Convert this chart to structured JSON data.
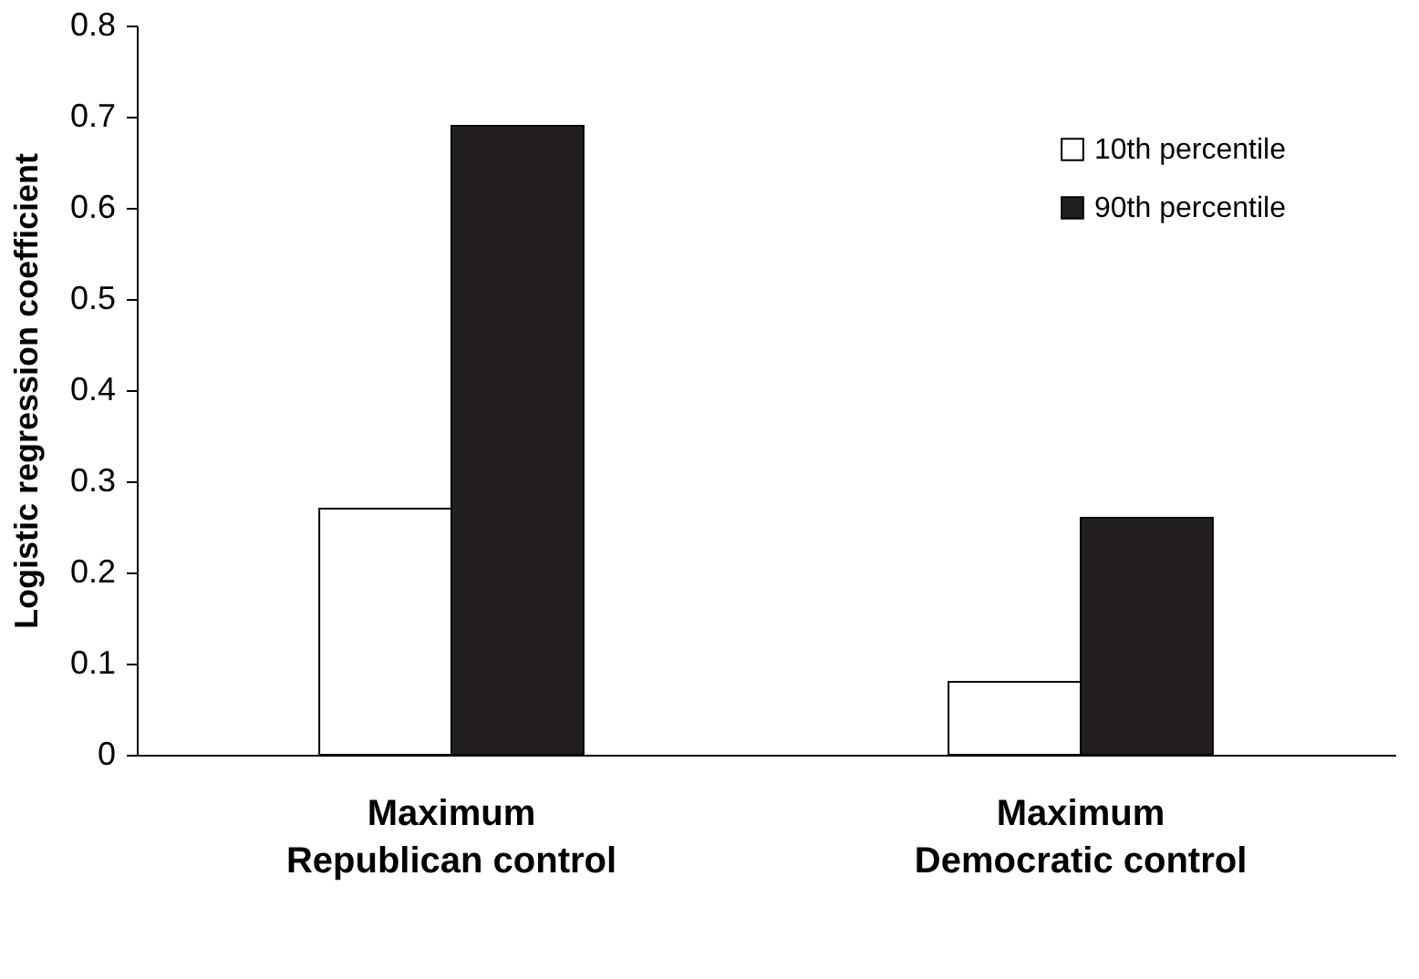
{
  "chart_data": {
    "type": "bar",
    "ylabel": "Logistic regression coefficient",
    "categories": [
      "Maximum\nRepublican control",
      "Maximum\nDemocratic control"
    ],
    "series": [
      {
        "name": "10th percentile",
        "color": "#ffffff",
        "values": [
          0.27,
          0.08
        ]
      },
      {
        "name": "90th percentile",
        "color": "#231f20",
        "values": [
          0.69,
          0.26
        ]
      }
    ],
    "ylim": [
      0,
      0.8
    ],
    "yticks": [
      0,
      0.1,
      0.2,
      0.3,
      0.4,
      0.5,
      0.6,
      0.7,
      0.8
    ],
    "grid": false,
    "legend": "top right"
  }
}
